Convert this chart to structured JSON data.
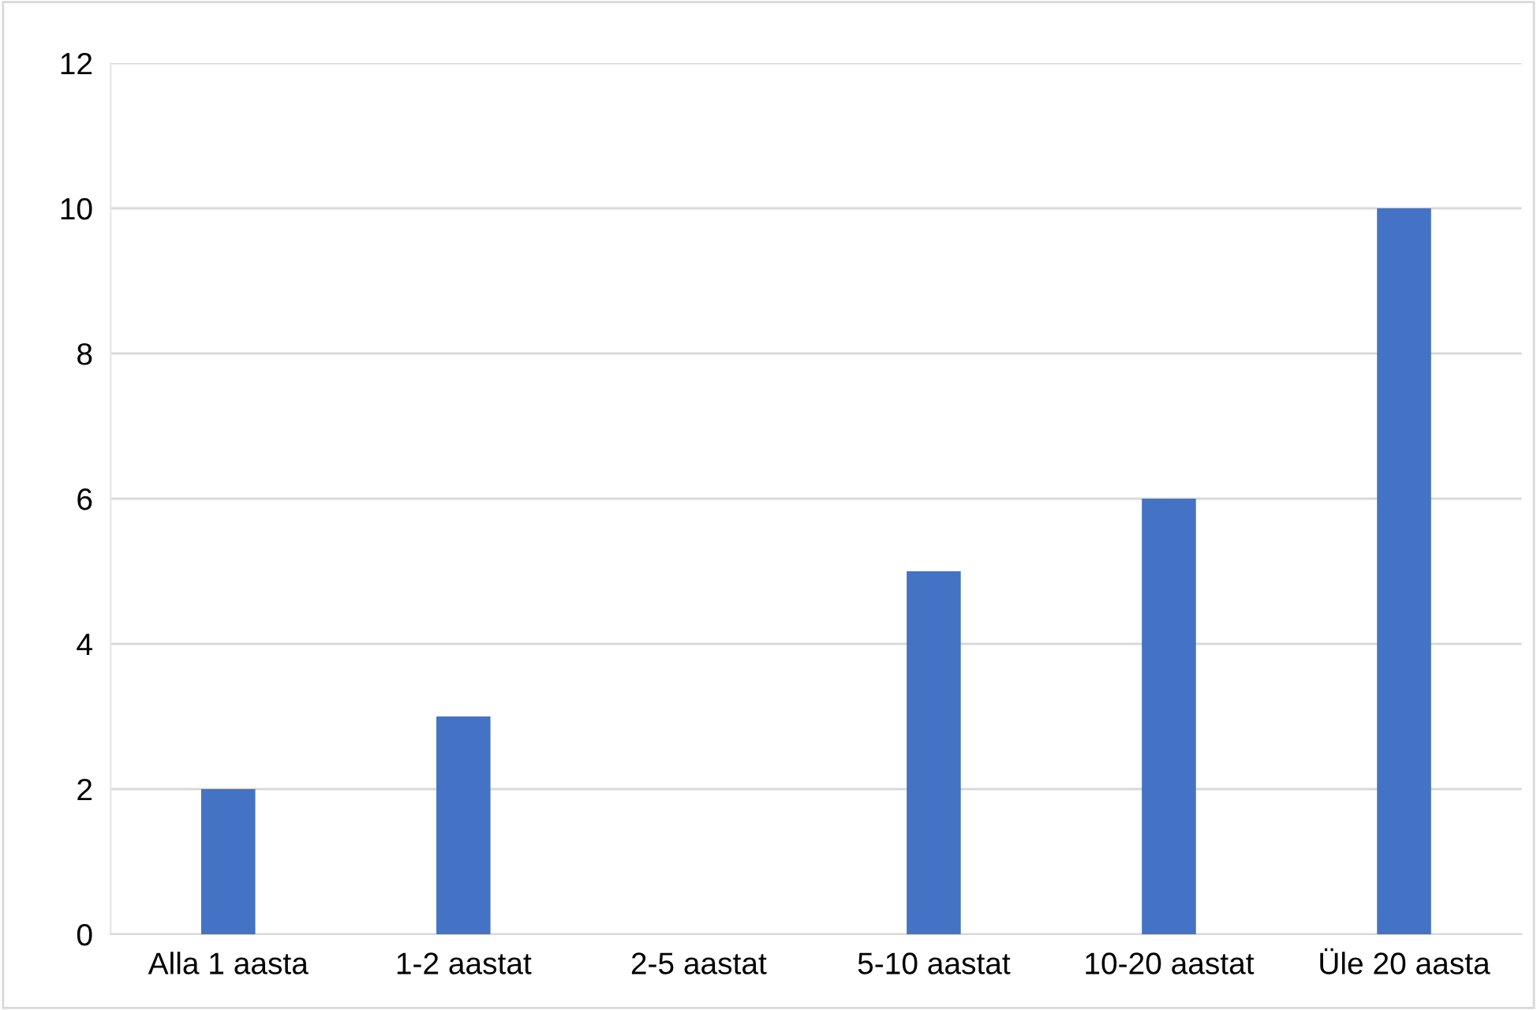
{
  "chart_data": {
    "type": "bar",
    "categories": [
      "Alla 1 aasta",
      "1-2 aastat",
      "2-5 aastat",
      "5-10 aastat",
      "10-20 aastat",
      "Üle 20 aasta"
    ],
    "values": [
      2,
      3,
      0,
      5,
      6,
      10
    ],
    "color": "#4472c4",
    "ylim": [
      0,
      12
    ],
    "yticks": [
      0,
      2,
      4,
      6,
      8,
      10,
      12
    ],
    "grid": "y"
  }
}
